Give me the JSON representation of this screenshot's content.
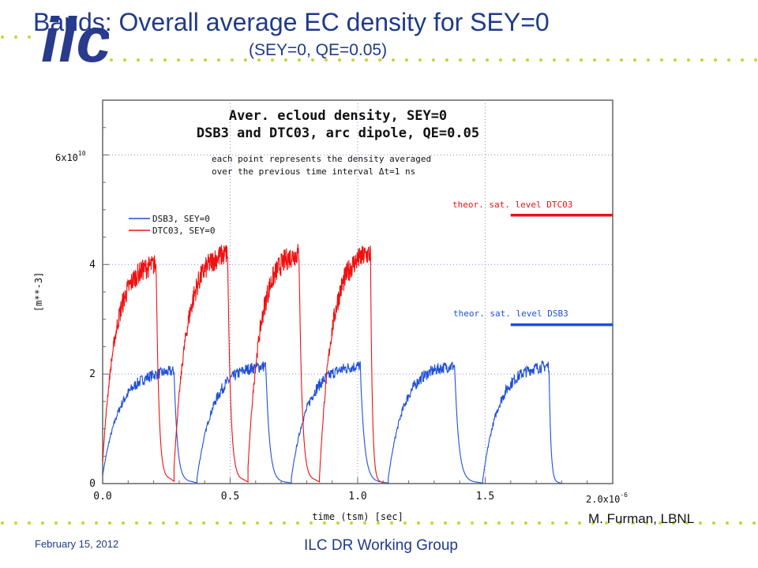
{
  "slide": {
    "title": "Bands: Overall average EC density for SEY=0",
    "subtitle": "(SEY=0, QE=0.05)",
    "author": "M. Furman, LBNL",
    "date": "February 15, 2012",
    "group": "ILC DR Working Group",
    "logo_text": "ilc",
    "colors": {
      "title": "#1f3a8a",
      "dots": "#c6d43a",
      "logo": "#2a3a8c"
    }
  },
  "chart_data": {
    "type": "line",
    "title_lines": [
      "Aver. ecloud density, SEY=0",
      "DSB3 and DTC03, arc dipole, QE=0.05"
    ],
    "annotation_lines": [
      "each point represents the density averaged",
      "over the previous time interval Δt=1 ns"
    ],
    "xlabel": "time (tsm) [sec]",
    "ylabel": "[m**-3]",
    "x_unit_label": "2.0x10",
    "x_unit_exp": "-6",
    "y_unit_label": "6x10",
    "y_unit_exp": "10",
    "xlim": [
      0,
      2e-06
    ],
    "ylim": [
      0,
      70000000000.0
    ],
    "x_ticks": [
      {
        "value": 0.0,
        "label": "0.0"
      },
      {
        "value": 5e-07,
        "label": "0.5"
      },
      {
        "value": 1e-06,
        "label": "1.0"
      },
      {
        "value": 1.5e-06,
        "label": "1.5"
      }
    ],
    "y_ticks": [
      {
        "value": 0,
        "label": "0"
      },
      {
        "value": 20000000000.0,
        "label": "2"
      },
      {
        "value": 40000000000.0,
        "label": "4"
      }
    ],
    "grid": true,
    "legend_position": "left",
    "series": [
      {
        "name": "DSB3, SEY=0",
        "color": "#1f4fd8",
        "bands": [
          {
            "start": 0.0,
            "end": 2.8e-07,
            "peak": 20500000000.0,
            "floor": 1500000000.0
          },
          {
            "start": 3.7e-07,
            "end": 6.4e-07,
            "peak": 21500000000.0,
            "floor": 1000000000.0
          },
          {
            "start": 7.4e-07,
            "end": 1.01e-06,
            "peak": 21500000000.0,
            "floor": 1000000000.0
          },
          {
            "start": 1.12e-06,
            "end": 1.38e-06,
            "peak": 21500000000.0,
            "floor": 1000000000.0
          },
          {
            "start": 1.49e-06,
            "end": 1.75e-06,
            "peak": 21500000000.0,
            "floor": 500000000.0
          }
        ]
      },
      {
        "name": "DTC03, SEY=0",
        "color": "#ee1111",
        "bands": [
          {
            "start": 0.0,
            "end": 2.1e-07,
            "peak": 40000000000.0,
            "floor": 4000000000.0
          },
          {
            "start": 2.8e-07,
            "end": 4.9e-07,
            "peak": 42000000000.0,
            "floor": 3000000000.0
          },
          {
            "start": 5.7e-07,
            "end": 7.7e-07,
            "peak": 42000000000.0,
            "floor": 3000000000.0
          },
          {
            "start": 8.5e-07,
            "end": 1.05e-06,
            "peak": 42000000000.0,
            "floor": 1000000000.0
          }
        ]
      }
    ],
    "saturation_levels": [
      {
        "label": "theor. sat. level DTC03",
        "value": 49000000000.0,
        "x_start": 1.6e-06,
        "color": "#ee1111"
      },
      {
        "label": "theor. sat. level DSB3",
        "value": 29000000000.0,
        "x_start": 1.6e-06,
        "color": "#1f4fd8"
      }
    ]
  }
}
